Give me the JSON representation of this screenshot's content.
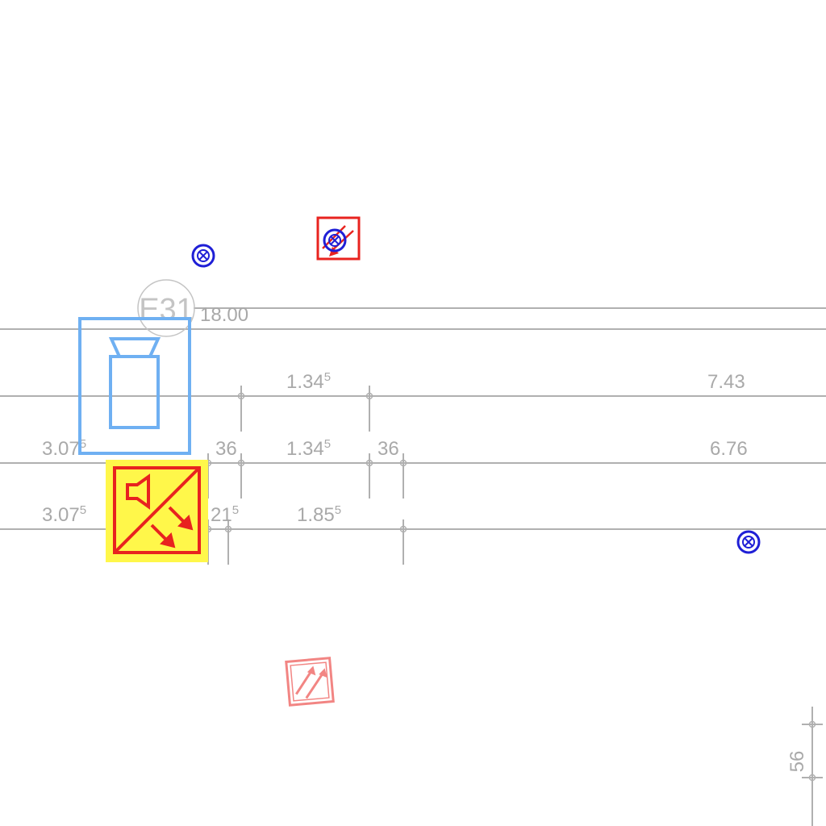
{
  "floor_plan": {
    "grid_label": "E31",
    "level_label": "18.00",
    "dimensions": {
      "d_row1_span": "1.34",
      "d_row1_span_sup": "5",
      "d_row1_right": "7.43",
      "d_row2_left": "3.07",
      "d_row2_left_sup": "5",
      "d_row2_gap_a": "36",
      "d_row2_span": "1.34",
      "d_row2_span_sup": "5",
      "d_row2_gap_b": "36",
      "d_row2_right": "6.76",
      "d_row3_left": "3.07",
      "d_row3_left_sup": "5",
      "d_row3_gap": "21",
      "d_row3_gap_sup": "5",
      "d_row3_span": "1.85",
      "d_row3_span_sup": "5",
      "d_vertical": "56"
    }
  },
  "symbols": {
    "colors": {
      "sensor": "#1f1fd6",
      "fire_red": "#e8231f",
      "highlight_yellow": "#fff74a",
      "device_blue": "#6fb0f2",
      "line_gray": "#b0b0b0"
    },
    "icons": [
      "smoke-detector-icon",
      "emergency-exit-sign-icon",
      "speaker-icon",
      "fire-damper-icon",
      "exit-direction-sign-icon"
    ]
  }
}
